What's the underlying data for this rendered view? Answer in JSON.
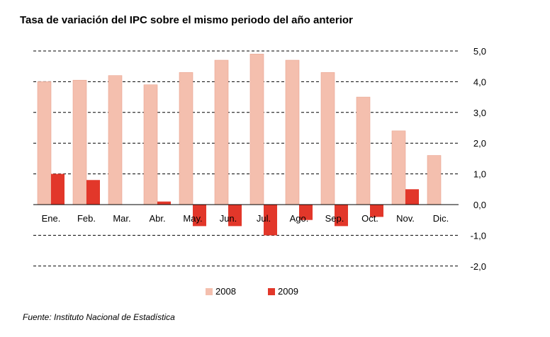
{
  "colors": {
    "s2008": "#f4bfae",
    "s2008_stroke": "#eaa48f",
    "s2009": "#e2372a",
    "grid": "#000000"
  },
  "source": "Fuente: Instituto Nacional de Estadística",
  "chart_data": {
    "type": "bar",
    "title": "Tasa de variación del IPC sobre el mismo periodo del año anterior",
    "categories": [
      "Ene.",
      "Feb.",
      "Mar.",
      "Abr.",
      "May.",
      "Jun.",
      "Jul.",
      "Ago.",
      "Sep.",
      "Oct.",
      "Nov.",
      "Dic."
    ],
    "series": [
      {
        "name": "2008",
        "values": [
          4.0,
          4.05,
          4.2,
          3.9,
          4.3,
          4.7,
          4.9,
          4.7,
          4.3,
          3.5,
          2.4,
          1.6
        ]
      },
      {
        "name": "2009",
        "values": [
          1.0,
          0.8,
          null,
          0.1,
          -0.7,
          -0.7,
          -1.0,
          -0.5,
          -0.7,
          -0.4,
          0.5,
          null
        ]
      }
    ],
    "ylim": [
      -2.0,
      5.0
    ],
    "yticks": [
      "5,0",
      "4,0",
      "3,0",
      "2,0",
      "1,0",
      "0,0",
      "-1,0",
      "-2,0"
    ],
    "ytick_values": [
      5,
      4,
      3,
      2,
      1,
      0,
      -1,
      -2
    ],
    "grid": true,
    "legend": "bottom"
  }
}
